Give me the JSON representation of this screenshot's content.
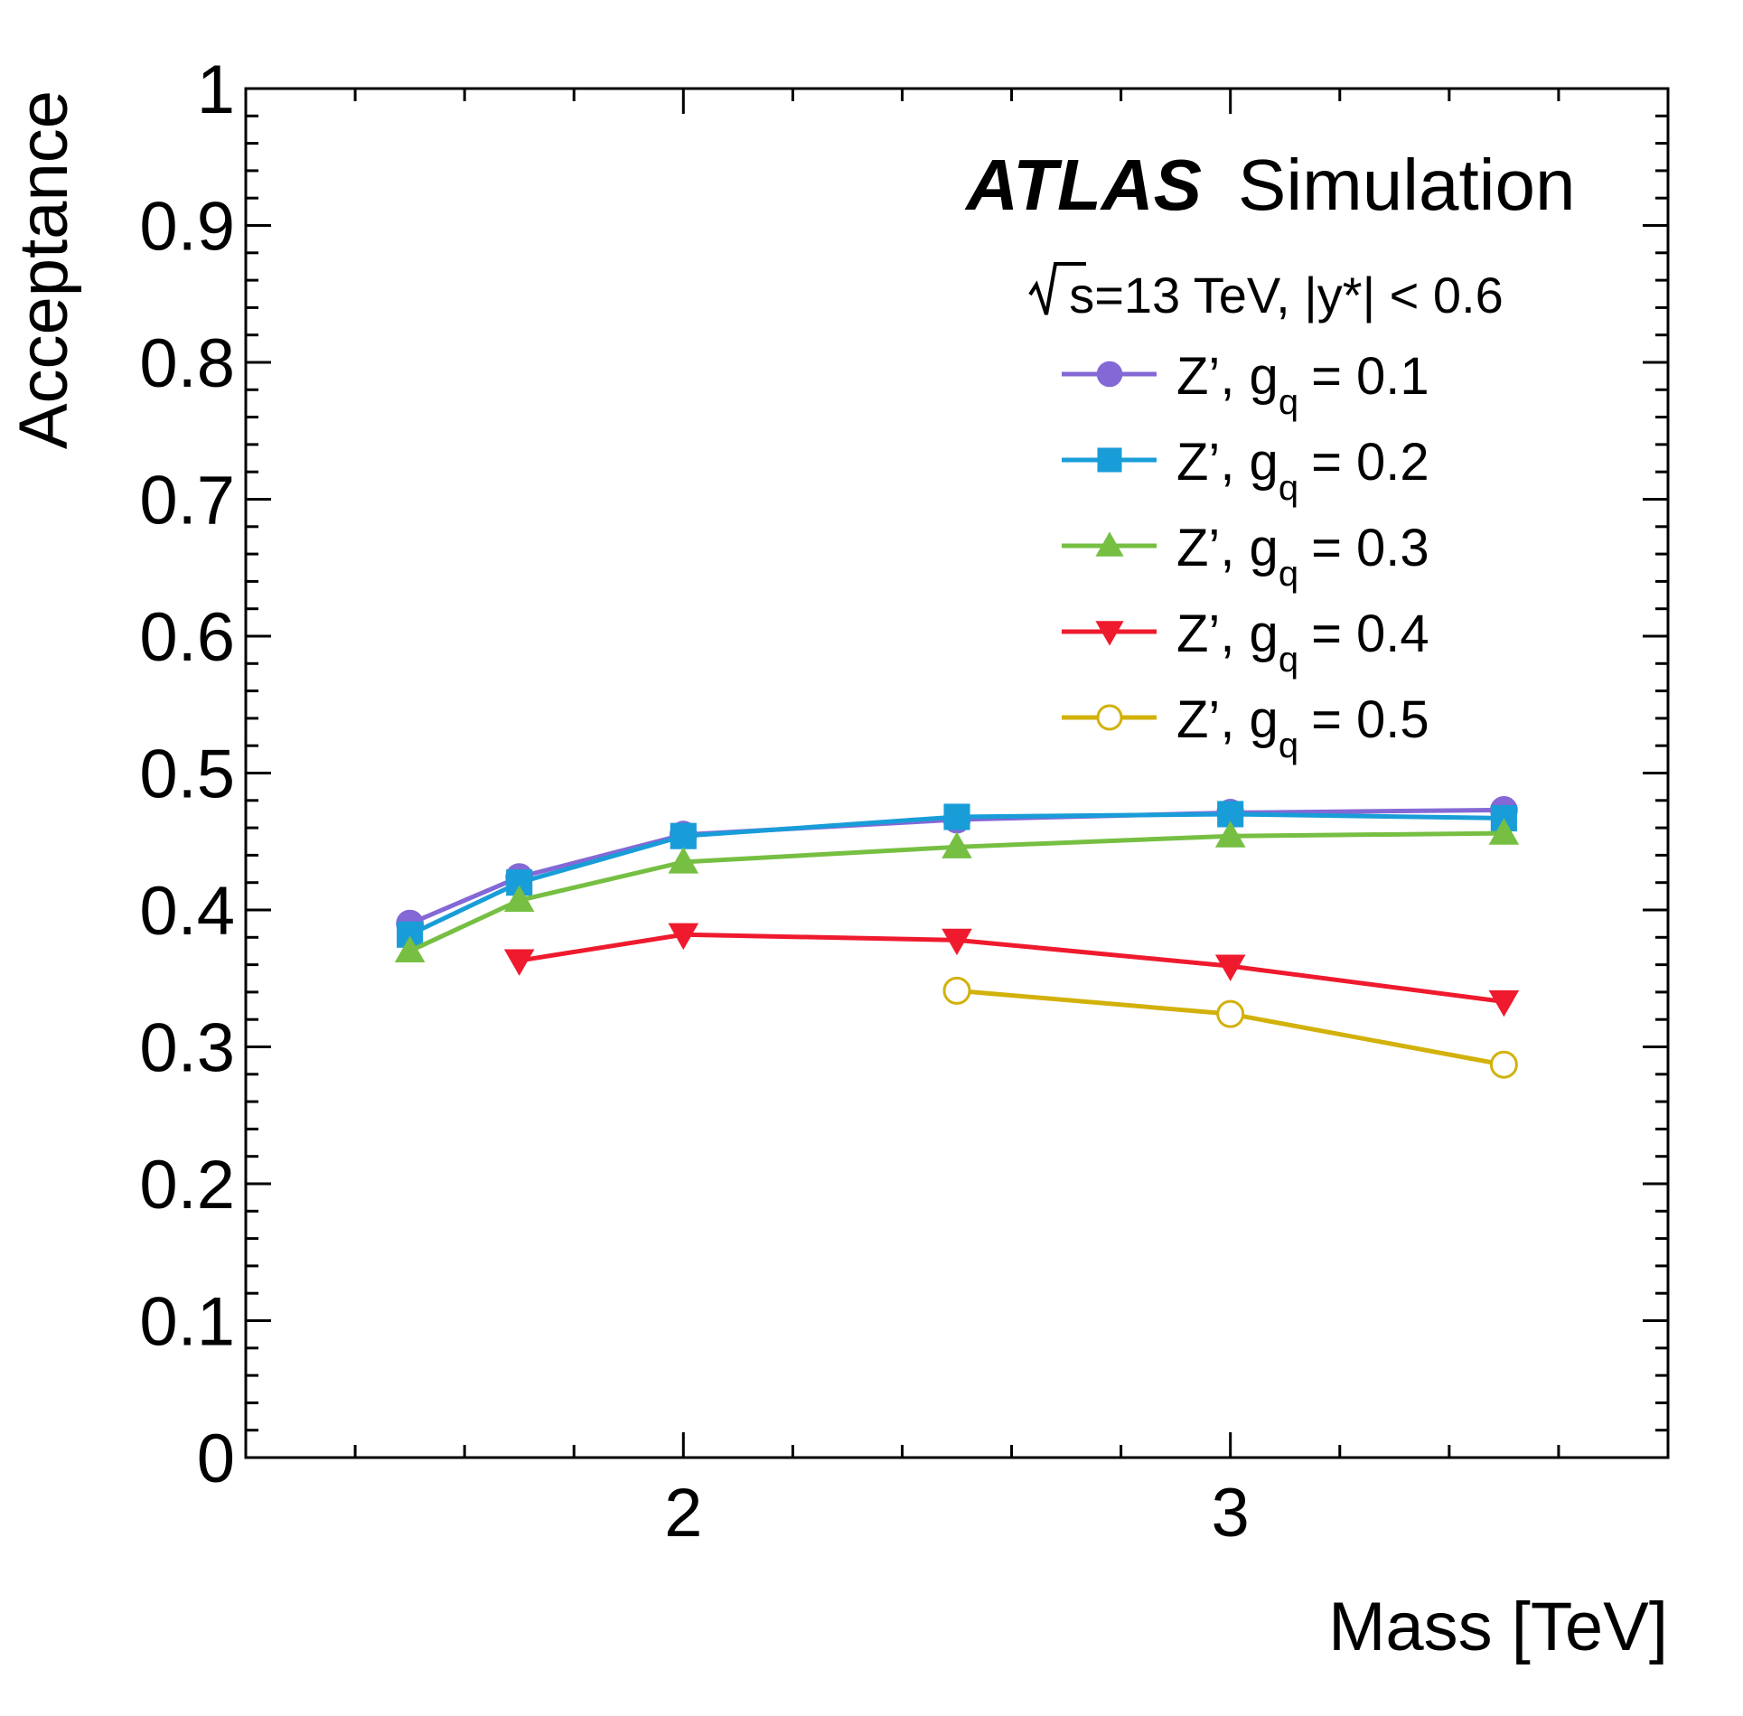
{
  "chart_data": {
    "type": "line",
    "title": "",
    "xlabel": "Mass [TeV]",
    "ylabel": "Acceptance",
    "xlim": [
      1.2,
      3.8
    ],
    "ylim": [
      0,
      1
    ],
    "x_tick_labels": [
      "2",
      "3"
    ],
    "y_tick_labels": [
      "0",
      "0.1",
      "0.2",
      "0.3",
      "0.4",
      "0.5",
      "0.6",
      "0.7",
      "0.8",
      "0.9",
      "1"
    ],
    "grid": false,
    "legend_position": "top-right",
    "annotations": {
      "experiment": "ATLAS",
      "label": "Simulation",
      "energy": "s=13 TeV, |y*| < 0.6"
    },
    "series": [
      {
        "name": "Z’, gq = 0.1",
        "legend_main": "Z’, g",
        "legend_sub": "q",
        "legend_value": "= 0.1",
        "color": "#8468d5",
        "marker": "circle",
        "x": [
          1.5,
          1.7,
          2.0,
          2.5,
          3.0,
          3.5
        ],
        "y": [
          0.39,
          0.424,
          0.455,
          0.466,
          0.471,
          0.473
        ]
      },
      {
        "name": "Z’, gq = 0.2",
        "legend_main": "Z’, g",
        "legend_sub": "q",
        "legend_value": "= 0.2",
        "color": "#199dd8",
        "marker": "square",
        "x": [
          1.5,
          1.7,
          2.0,
          2.5,
          3.0,
          3.5
        ],
        "y": [
          0.382,
          0.42,
          0.454,
          0.468,
          0.47,
          0.467
        ]
      },
      {
        "name": "Z’, gq = 0.3",
        "legend_main": "Z’, g",
        "legend_sub": "q",
        "legend_value": "= 0.3",
        "color": "#76bf42",
        "marker": "triangle-up",
        "x": [
          1.5,
          1.7,
          2.0,
          2.5,
          3.0,
          3.5
        ],
        "y": [
          0.37,
          0.407,
          0.435,
          0.446,
          0.454,
          0.456
        ]
      },
      {
        "name": "Z’, gq = 0.4",
        "legend_main": "Z’, g",
        "legend_sub": "q",
        "legend_value": "= 0.4",
        "color": "#ef1a2e",
        "marker": "triangle-down",
        "x": [
          1.7,
          2.0,
          2.5,
          3.0,
          3.5
        ],
        "y": [
          0.363,
          0.382,
          0.378,
          0.359,
          0.333
        ]
      },
      {
        "name": "Z’, gq = 0.5",
        "legend_main": "Z’, g",
        "legend_sub": "q",
        "legend_value": "= 0.5",
        "color": "#d2b10b",
        "marker": "circle-open",
        "x": [
          2.5,
          3.0,
          3.5
        ],
        "y": [
          0.341,
          0.324,
          0.287
        ]
      }
    ]
  }
}
